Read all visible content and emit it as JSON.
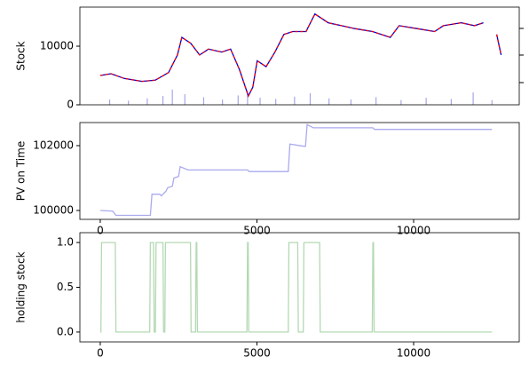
{
  "chart_data": [
    {
      "type": "line",
      "ylabel": "Stock",
      "x": [
        0,
        340,
        764,
        1330,
        1755,
        2180,
        2463,
        2604,
        2887,
        3170,
        3453,
        3877,
        4160,
        4443,
        4726,
        4868,
        5009,
        5292,
        5575,
        5858,
        6141,
        6566,
        6849,
        7273,
        7698,
        8122,
        8688,
        9254,
        9537,
        10103,
        10669,
        10952,
        11518,
        11943,
        12226,
        12367,
        12650,
        12792
      ],
      "values": [
        5000,
        5300,
        4500,
        4000,
        4200,
        5500,
        8500,
        11500,
        10500,
        8500,
        9500,
        9000,
        9500,
        6000,
        1500,
        3000,
        7500,
        6500,
        9000,
        12000,
        12500,
        12500,
        15500,
        14000,
        13500,
        13000,
        12500,
        11500,
        13500,
        13000,
        12500,
        13500,
        14000,
        13500,
        14000,
        null,
        12000,
        8500
      ],
      "colors": [
        "#0000cc",
        "#ff0000"
      ],
      "volume": {
        "x": [
          300,
          900,
          1500,
          2000,
          2300,
          2700,
          3300,
          3900,
          4400,
          4700,
          5100,
          5600,
          6200,
          6700,
          7300,
          8000,
          8800,
          9600,
          10400,
          11200,
          11900,
          12500
        ],
        "values": [
          900,
          700,
          1100,
          1500,
          2600,
          1800,
          1300,
          900,
          1600,
          2400,
          1200,
          1000,
          1400,
          2000,
          1100,
          900,
          1300,
          800,
          1200,
          1000,
          2100,
          800
        ],
        "color": "#8080e0"
      },
      "xlim": [
        -650,
        13370
      ],
      "ylim": [
        0,
        16670
      ],
      "yticks": [
        0,
        10000
      ]
    },
    {
      "type": "line",
      "ylabel": "PV on Time",
      "x": [
        0,
        400,
        500,
        1600,
        1650,
        1900,
        1950,
        2100,
        2150,
        2300,
        2350,
        2500,
        2550,
        2800,
        4700,
        4750,
        6000,
        6050,
        6500,
        6550,
        6600,
        6800,
        8700,
        8750,
        12500
      ],
      "values": [
        100000,
        99980,
        99850,
        99850,
        100500,
        100500,
        100450,
        100600,
        100700,
        100750,
        101000,
        101050,
        101350,
        101250,
        101250,
        101200,
        101200,
        102050,
        101980,
        101980,
        102650,
        102550,
        102550,
        102500,
        102500
      ],
      "color": "#aaaaee",
      "xlim": [
        -650,
        13370
      ],
      "ylim": [
        99726,
        102712
      ],
      "xticks": [
        0,
        5000,
        10000
      ],
      "yticks": [
        100000,
        102000
      ]
    },
    {
      "type": "line",
      "ylabel": "holding stock",
      "x": [
        0,
        20,
        40,
        480,
        500,
        1580,
        1600,
        1700,
        1720,
        1760,
        1780,
        2000,
        2020,
        2060,
        2080,
        2880,
        2900,
        3040,
        3060,
        3080,
        3100,
        4680,
        4700,
        4720,
        4740,
        6000,
        6020,
        6300,
        6320,
        6480,
        6500,
        7000,
        7020,
        8680,
        8700,
        8720,
        8740,
        12500
      ],
      "values": [
        0,
        0,
        1,
        1,
        0,
        0,
        1,
        1,
        0,
        0,
        1,
        1,
        0,
        0,
        1,
        1,
        0,
        0,
        1,
        1,
        0,
        0,
        1,
        1,
        0,
        0,
        1,
        1,
        0,
        0,
        1,
        1,
        0,
        0,
        1,
        1,
        0,
        0
      ],
      "color": "#b3d9b3",
      "xlim": [
        -650,
        13370
      ],
      "ylim": [
        -0.11,
        1.11
      ],
      "xticks": [
        0,
        5000,
        10000
      ],
      "yticks": [
        {
          "value": 0,
          "label": "0.0"
        },
        {
          "value": 0.5,
          "label": "0.5"
        },
        {
          "value": 1,
          "label": "1.0"
        }
      ]
    }
  ]
}
